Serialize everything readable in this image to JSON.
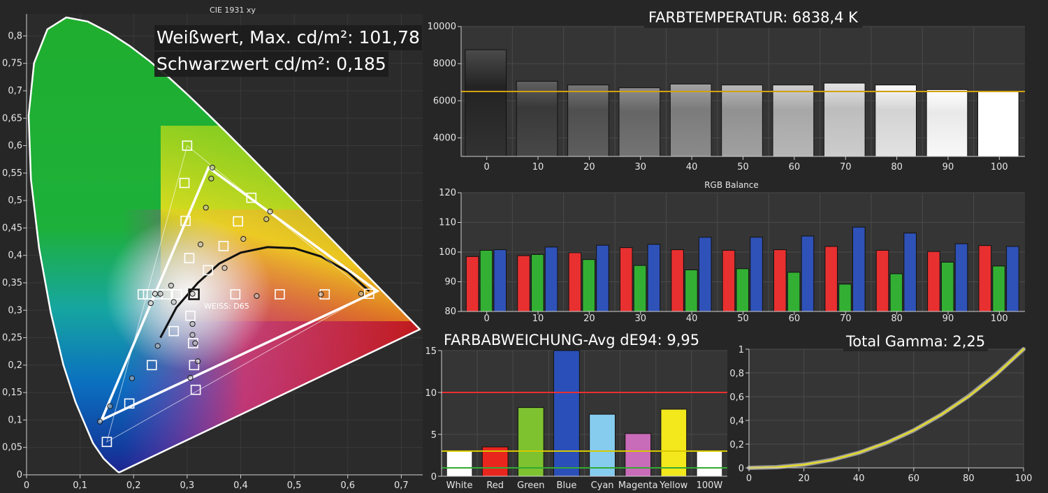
{
  "cie": {
    "title": "CIE 1931 xy",
    "white_label": "Weißwert, Max. cd/m²: 101,78",
    "black_label": "Schwarzwert cd/m²: 0,185",
    "weiss_label": "WEISS: D65",
    "x_ticks": [
      "0",
      "0,1",
      "0,2",
      "0,3",
      "0,4",
      "0,5",
      "0,6",
      "0,7"
    ],
    "y_ticks": [
      "0",
      "0,05",
      "0,1",
      "0,15",
      "0,2",
      "0,25",
      "0,3",
      "0,35",
      "0,4",
      "0,45",
      "0,5",
      "0,55",
      "0,6",
      "0,65",
      "0,7",
      "0,75",
      "0,8"
    ]
  },
  "chart_data": [
    {
      "type": "scatter",
      "title": "CIE 1931 xy",
      "xlim": [
        0,
        0.74
      ],
      "ylim": [
        0,
        0.84
      ],
      "target_gamut": [
        [
          0.64,
          0.33
        ],
        [
          0.3,
          0.6
        ],
        [
          0.15,
          0.06
        ]
      ],
      "measured_gamut": [
        [
          0.655,
          0.335
        ],
        [
          0.34,
          0.56
        ],
        [
          0.14,
          0.1
        ]
      ],
      "white_point": [
        0.3127,
        0.329
      ],
      "target_points": [
        [
          0.3,
          0.6
        ],
        [
          0.295,
          0.532
        ],
        [
          0.297,
          0.463
        ],
        [
          0.304,
          0.395
        ],
        [
          0.311,
          0.329
        ],
        [
          0.306,
          0.29
        ],
        [
          0.311,
          0.24
        ],
        [
          0.313,
          0.2
        ],
        [
          0.316,
          0.155
        ],
        [
          0.234,
          0.2
        ],
        [
          0.192,
          0.13
        ],
        [
          0.15,
          0.06
        ],
        [
          0.227,
          0.329
        ],
        [
          0.244,
          0.329
        ],
        [
          0.262,
          0.329
        ],
        [
          0.281,
          0.329
        ],
        [
          0.39,
          0.329
        ],
        [
          0.473,
          0.329
        ],
        [
          0.557,
          0.329
        ],
        [
          0.64,
          0.33
        ],
        [
          0.42,
          0.505
        ],
        [
          0.395,
          0.462
        ],
        [
          0.368,
          0.417
        ],
        [
          0.339,
          0.373
        ],
        [
          0.275,
          0.262
        ],
        [
          0.217,
          0.329
        ]
      ],
      "measured_points": [
        [
          0.347,
          0.56
        ],
        [
          0.345,
          0.54
        ],
        [
          0.335,
          0.487
        ],
        [
          0.325,
          0.42
        ],
        [
          0.31,
          0.33
        ],
        [
          0.27,
          0.345
        ],
        [
          0.24,
          0.33
        ],
        [
          0.232,
          0.313
        ],
        [
          0.25,
          0.33
        ],
        [
          0.275,
          0.315
        ],
        [
          0.31,
          0.275
        ],
        [
          0.31,
          0.255
        ],
        [
          0.315,
          0.24
        ],
        [
          0.32,
          0.207
        ],
        [
          0.306,
          0.177
        ],
        [
          0.197,
          0.176
        ],
        [
          0.156,
          0.125
        ],
        [
          0.137,
          0.097
        ],
        [
          0.245,
          0.235
        ],
        [
          0.43,
          0.326
        ],
        [
          0.55,
          0.329
        ],
        [
          0.625,
          0.33
        ],
        [
          0.455,
          0.48
        ],
        [
          0.448,
          0.466
        ],
        [
          0.405,
          0.43
        ],
        [
          0.37,
          0.377
        ]
      ],
      "planckian_locus": [
        [
          0.25,
          0.25
        ],
        [
          0.28,
          0.305
        ],
        [
          0.32,
          0.35
        ],
        [
          0.36,
          0.385
        ],
        [
          0.4,
          0.405
        ],
        [
          0.45,
          0.415
        ],
        [
          0.5,
          0.413
        ],
        [
          0.55,
          0.398
        ],
        [
          0.6,
          0.37
        ],
        [
          0.64,
          0.335
        ]
      ]
    },
    {
      "type": "bar",
      "title": "FARBTEMPERATUR: 6838,4 K",
      "categories": [
        "0",
        "10",
        "20",
        "30",
        "40",
        "50",
        "60",
        "70",
        "80",
        "90",
        "100"
      ],
      "values": [
        8750,
        7050,
        6850,
        6700,
        6900,
        6850,
        6850,
        6950,
        6850,
        6600,
        6500
      ],
      "reference": 6500,
      "ylim": [
        3000,
        10000
      ],
      "y_ticks": [
        "4000",
        "6000",
        "8000",
        "10000"
      ]
    },
    {
      "type": "bar",
      "title": "RGB Balance",
      "categories": [
        "0",
        "10",
        "20",
        "30",
        "40",
        "50",
        "60",
        "70",
        "80",
        "90",
        "100"
      ],
      "series": [
        {
          "color": "#e83030",
          "values": [
            98.5,
            98.8,
            99.8,
            101.5,
            100.8,
            100.6,
            100.8,
            101.9,
            100.6,
            100.2,
            102.2
          ]
        },
        {
          "color": "#33b033",
          "values": [
            100.6,
            99.2,
            97.5,
            95.5,
            94.0,
            94.4,
            93.2,
            89.2,
            92.7,
            96.6,
            95.3
          ]
        },
        {
          "color": "#2f52b8",
          "values": [
            100.8,
            101.7,
            102.3,
            102.6,
            105.0,
            105.0,
            105.4,
            108.4,
            106.4,
            102.8,
            101.9
          ]
        }
      ],
      "ylim": [
        80,
        120
      ],
      "y_ticks": [
        "80",
        "90",
        "100",
        "110",
        "120"
      ]
    },
    {
      "type": "bar",
      "title": "FARBABWEICHUNG-Avg dE94: 9,95",
      "categories": [
        "White",
        "Red",
        "Green",
        "Blue",
        "Cyan",
        "Magenta",
        "Yellow",
        "100W"
      ],
      "values": [
        3.0,
        3.5,
        8.2,
        15.0,
        7.4,
        5.1,
        8.0,
        3.0
      ],
      "colors": [
        "#ffffff",
        "#e8261e",
        "#7ec230",
        "#2b4fb8",
        "#86ccee",
        "#c86bb8",
        "#f2e81c",
        "#ffffff"
      ],
      "reference_lines": [
        {
          "value": 10,
          "color": "#e83030"
        },
        {
          "value": 3,
          "color": "#d8c800"
        },
        {
          "value": 1,
          "color": "#33aa33"
        }
      ],
      "ylim": [
        0,
        15
      ],
      "y_ticks": [
        "0",
        "5",
        "10",
        "15"
      ]
    },
    {
      "type": "line",
      "title": "Total Gamma: 2,25",
      "x": [
        0,
        10,
        20,
        30,
        40,
        50,
        60,
        70,
        80,
        90,
        100
      ],
      "series": [
        {
          "color": "#999999",
          "values": [
            0,
            0.006,
            0.027,
            0.067,
            0.127,
            0.21,
            0.316,
            0.448,
            0.605,
            0.789,
            1.0
          ]
        },
        {
          "color": "#e6dc2a",
          "values": [
            0,
            0.006,
            0.027,
            0.066,
            0.128,
            0.212,
            0.317,
            0.448,
            0.602,
            0.786,
            1.0
          ]
        }
      ],
      "xlim": [
        0,
        100
      ],
      "ylim": [
        0,
        1
      ],
      "x_ticks": [
        "0",
        "20",
        "40",
        "60",
        "80",
        "100"
      ],
      "y_ticks": [
        "0",
        "0,2",
        "0,4",
        "0,6",
        "0,8",
        "1"
      ]
    }
  ]
}
